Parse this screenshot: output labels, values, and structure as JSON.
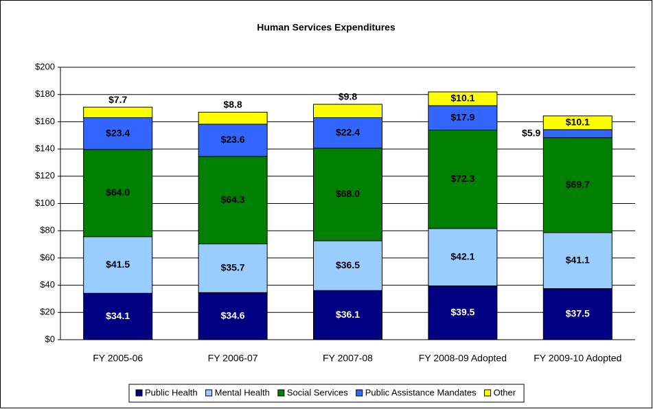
{
  "chart_data": {
    "type": "stacked_bar",
    "title": "Human Services Expenditures",
    "categories": [
      "FY 2005-06",
      "FY 2006-07",
      "FY 2007-08",
      "FY 2008-09 Adopted",
      "FY 2009-10 Adopted"
    ],
    "series": [
      {
        "name": "Public Health",
        "color": "#000080",
        "values": [
          34.1,
          34.6,
          36.1,
          39.5,
          37.5
        ],
        "value_labels": [
          "$34.1",
          "$34.6",
          "$36.1",
          "$39.5",
          "$37.5"
        ]
      },
      {
        "name": "Mental Health",
        "color": "#99ccff",
        "values": [
          41.5,
          35.7,
          36.5,
          42.1,
          41.1
        ],
        "value_labels": [
          "$41.5",
          "$35.7",
          "$36.5",
          "$42.1",
          "$41.1"
        ]
      },
      {
        "name": "Social Services",
        "color": "#008000",
        "values": [
          64.0,
          64.3,
          68.0,
          72.3,
          69.7
        ],
        "value_labels": [
          "$64.0",
          "$64.3",
          "$68.0",
          "$72.3",
          "$69.7"
        ]
      },
      {
        "name": "Public Assistance Mandates",
        "color": "#3366ff",
        "values": [
          23.4,
          23.6,
          22.4,
          17.9,
          5.9
        ],
        "value_labels": [
          "$23.4",
          "$23.6",
          "$22.4",
          "$17.9",
          "$5.9"
        ]
      },
      {
        "name": "Other",
        "color": "#ffff00",
        "values": [
          7.7,
          8.8,
          9.8,
          10.1,
          10.1
        ],
        "value_labels": [
          "$7.7",
          "$8.8",
          "$9.8",
          "$10.1",
          "$10.1"
        ]
      }
    ],
    "ylim": [
      0,
      200
    ],
    "yticks": [
      {
        "value": 0,
        "label": "$0"
      },
      {
        "value": 20,
        "label": "$20"
      },
      {
        "value": 40,
        "label": "$40"
      },
      {
        "value": 60,
        "label": "$60"
      },
      {
        "value": 80,
        "label": "$80"
      },
      {
        "value": 100,
        "label": "$100"
      },
      {
        "value": 120,
        "label": "$120"
      },
      {
        "value": 140,
        "label": "$140"
      },
      {
        "value": 160,
        "label": "$160"
      },
      {
        "value": 180,
        "label": "$180"
      },
      {
        "value": 200,
        "label": "$200"
      }
    ],
    "grid": true,
    "legend": "bottom"
  }
}
